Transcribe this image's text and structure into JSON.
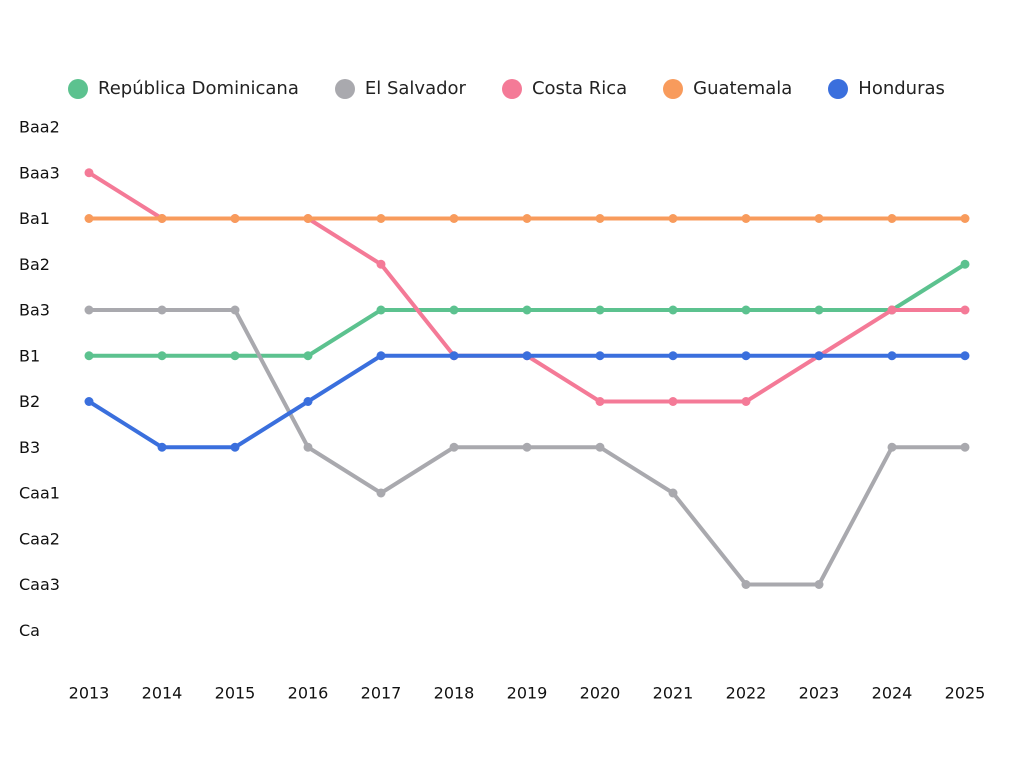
{
  "chart_data": {
    "type": "line",
    "title": "",
    "xlabel": "",
    "ylabel": "",
    "x": [
      "2013",
      "2014",
      "2015",
      "2016",
      "2017",
      "2018",
      "2019",
      "2020",
      "2021",
      "2022",
      "2023",
      "2024",
      "2025"
    ],
    "y_categories": [
      "Baa2",
      "Baa3",
      "Ba1",
      "Ba2",
      "Ba3",
      "B1",
      "B2",
      "B3",
      "Caa1",
      "Caa2",
      "Caa3",
      "Ca"
    ],
    "grid": false,
    "legend_position": "top",
    "series": [
      {
        "name": "República Dominicana",
        "color": "#5cc28f",
        "values": [
          "B1",
          "B1",
          "B1",
          "B1",
          "Ba3",
          "Ba3",
          "Ba3",
          "Ba3",
          "Ba3",
          "Ba3",
          "Ba3",
          "Ba3",
          "Ba2"
        ]
      },
      {
        "name": "El Salvador",
        "color": "#a9a9ae",
        "values": [
          "Ba3",
          "Ba3",
          "Ba3",
          "B3",
          "Caa1",
          "B3",
          "B3",
          "B3",
          "Caa1",
          "Caa3",
          "Caa3",
          "B3",
          "B3"
        ]
      },
      {
        "name": "Costa Rica",
        "color": "#f47a97",
        "values": [
          "Baa3",
          "Ba1",
          "Ba1",
          "Ba1",
          "Ba2",
          "B1",
          "B1",
          "B2",
          "B2",
          "B2",
          "B1",
          "Ba3",
          "Ba3"
        ]
      },
      {
        "name": "Guatemala",
        "color": "#f89b5c",
        "values": [
          "Ba1",
          "Ba1",
          "Ba1",
          "Ba1",
          "Ba1",
          "Ba1",
          "Ba1",
          "Ba1",
          "Ba1",
          "Ba1",
          "Ba1",
          "Ba1",
          "Ba1"
        ]
      },
      {
        "name": "Honduras",
        "color": "#3a6fdd",
        "values": [
          "B2",
          "B3",
          "B3",
          "B2",
          "B1",
          "B1",
          "B1",
          "B1",
          "B1",
          "B1",
          "B1",
          "B1",
          "B1"
        ]
      }
    ]
  }
}
